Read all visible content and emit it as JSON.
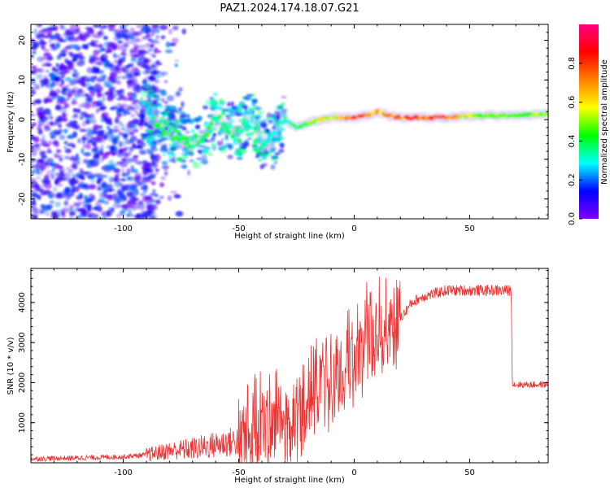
{
  "title": "PAZ1.2024.174.18.07.G21",
  "chart_data": [
    {
      "type": "heatmap",
      "xlabel": "Height of straight line (km)",
      "ylabel": "Frequency (Hz)",
      "xlim": [
        -140,
        84
      ],
      "ylim": [
        -25,
        24
      ],
      "xticks": [
        -100,
        -50,
        0,
        50
      ],
      "yticks": [
        -20,
        -10,
        0,
        10,
        20
      ],
      "ridge": {
        "x": [
          -90,
          -85,
          -80,
          -75,
          -70,
          -65,
          -60,
          -55,
          -50,
          -45,
          -40,
          -35,
          -30,
          -25,
          -20,
          -15,
          -10,
          -5,
          0,
          5,
          10,
          15,
          20,
          30,
          40,
          50,
          60,
          70,
          84
        ],
        "freq": [
          2,
          -1,
          -3,
          -5,
          -6,
          -4,
          0,
          -2,
          -4,
          2,
          -6,
          -5,
          0,
          -2,
          -1,
          0,
          0.5,
          0.5,
          0.5,
          1,
          2,
          1,
          0.5,
          0.5,
          0.5,
          1,
          1,
          1,
          1.5
        ],
        "amplitude": [
          0.3,
          0.4,
          0.45,
          0.45,
          0.4,
          0.45,
          0.4,
          0.4,
          0.4,
          0.35,
          0.35,
          0.3,
          0.35,
          0.4,
          0.55,
          0.6,
          0.65,
          0.75,
          0.85,
          0.8,
          0.7,
          0.8,
          0.8,
          0.85,
          0.8,
          0.55,
          0.5,
          0.5,
          0.55
        ]
      },
      "colorbar": {
        "label": "Normalized spectral amplitude",
        "range": [
          0,
          1
        ],
        "ticks": [
          "0.0",
          "0.2",
          "0.4",
          "0.6",
          "0.8"
        ],
        "colors": [
          "#8000ff",
          "#0000ff",
          "#00ffff",
          "#00ff00",
          "#ffff00",
          "#ff8000",
          "#ff0000",
          "#ff0080"
        ]
      }
    },
    {
      "type": "line",
      "xlabel": "Height of straight line (km)",
      "ylabel": "SNR (10 * v/v)",
      "xlim": [
        -140,
        84
      ],
      "ylim": [
        0,
        4850
      ],
      "xticks": [
        -100,
        -50,
        0,
        50
      ],
      "yticks": [
        1000,
        2000,
        3000,
        4000
      ],
      "color": "#ee3333",
      "series": [
        {
          "x": [
            -140,
            -120,
            -100,
            -90,
            -80,
            -70,
            -60,
            -50,
            -45,
            -40,
            -35,
            -30,
            -25,
            -20,
            -15,
            -10,
            -5,
            0,
            5,
            10,
            15,
            20,
            25,
            30,
            40,
            50,
            60,
            68,
            68.5,
            84
          ],
          "y": [
            100,
            120,
            150,
            200,
            300,
            350,
            450,
            550,
            700,
            900,
            1200,
            800,
            1200,
            1500,
            1800,
            2000,
            2200,
            2600,
            3000,
            3200,
            3500,
            3600,
            4000,
            4150,
            4300,
            4300,
            4300,
            4300,
            1950,
            1950
          ]
        }
      ]
    }
  ]
}
